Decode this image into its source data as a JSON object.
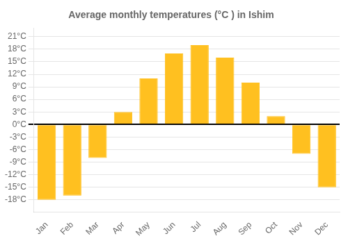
{
  "chart_data": {
    "type": "bar",
    "title": "Average monthly temperatures (°C ) in Ishim",
    "categories": [
      "Jan",
      "Feb",
      "Mar",
      "Apr",
      "May",
      "Jun",
      "Jul",
      "Aug",
      "Sep",
      "Oct",
      "Nov",
      "Dec"
    ],
    "values": [
      -18,
      -17,
      -8,
      3,
      11,
      17,
      19,
      16,
      10,
      2,
      -7,
      -15
    ],
    "color": "#FFC020",
    "ylim": [
      -21,
      23
    ],
    "yticks": [
      {
        "value": -18,
        "label": "-18°C"
      },
      {
        "value": -15,
        "label": "-15°C"
      },
      {
        "value": -12,
        "label": "-12°C"
      },
      {
        "value": -9,
        "label": "-9°C"
      },
      {
        "value": -6,
        "label": "-6°C"
      },
      {
        "value": -3,
        "label": "-3°C"
      },
      {
        "value": 0,
        "label": "0°C"
      },
      {
        "value": 3,
        "label": "3°C"
      },
      {
        "value": 6,
        "label": "6°C"
      },
      {
        "value": 9,
        "label": "9°C"
      },
      {
        "value": 12,
        "label": "12°C"
      },
      {
        "value": 15,
        "label": "15°C"
      },
      {
        "value": 18,
        "label": "18°C"
      },
      {
        "value": 21,
        "label": "21°C"
      }
    ],
    "grid": true
  }
}
